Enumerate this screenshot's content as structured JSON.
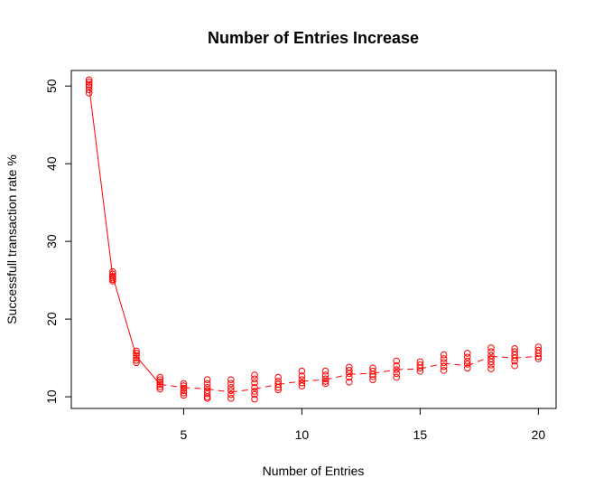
{
  "chart_data": {
    "type": "scatter",
    "title": "Number of Entries Increase",
    "xlabel": "Number of Entries",
    "ylabel": "Successfull transaction rate %",
    "xlim": [
      0.25,
      20.75
    ],
    "ylim": [
      8.5,
      52.0
    ],
    "xticks": [
      5,
      10,
      15,
      20
    ],
    "yticks": [
      10,
      20,
      30,
      40,
      50
    ],
    "grid": false,
    "series_color": "#ff0000",
    "x": [
      1,
      2,
      3,
      4,
      5,
      6,
      7,
      8,
      9,
      10,
      11,
      12,
      13,
      14,
      15,
      16,
      17,
      18,
      19,
      20
    ],
    "points": [
      [
        50.8,
        50.5,
        50.2,
        49.9,
        49.5,
        49.1
      ],
      [
        26.1,
        25.8,
        25.5,
        25.3,
        25.1,
        24.9
      ],
      [
        15.9,
        15.6,
        15.3,
        15.0,
        14.7,
        14.4
      ],
      [
        12.5,
        12.2,
        11.9,
        11.6,
        11.3,
        11.0
      ],
      [
        11.7,
        11.4,
        11.1,
        10.8,
        10.5,
        10.2
      ],
      [
        12.2,
        11.7,
        11.2,
        10.8,
        10.4,
        10.0,
        9.8
      ],
      [
        12.2,
        11.7,
        11.2,
        10.8,
        10.3,
        9.8
      ],
      [
        12.8,
        12.3,
        11.8,
        11.2,
        10.7,
        10.3,
        9.7
      ],
      [
        12.5,
        12.0,
        11.6,
        11.2,
        10.9
      ],
      [
        13.3,
        12.7,
        12.2,
        11.8,
        11.4
      ],
      [
        13.3,
        12.8,
        12.3,
        12.0,
        11.7
      ],
      [
        13.8,
        13.4,
        13.0,
        12.5,
        11.9
      ],
      [
        13.7,
        13.3,
        12.9,
        12.6,
        12.2
      ],
      [
        14.6,
        14.0,
        13.5,
        13.0,
        12.5
      ],
      [
        14.5,
        14.1,
        13.7,
        13.3
      ],
      [
        15.4,
        14.9,
        14.4,
        13.9,
        13.4
      ],
      [
        15.6,
        15.1,
        14.6,
        14.2,
        13.7
      ],
      [
        16.3,
        15.8,
        15.3,
        14.9,
        14.5,
        14.1,
        13.6
      ],
      [
        16.2,
        15.8,
        15.4,
        15.0,
        14.6,
        14.0
      ],
      [
        16.4,
        16.0,
        15.6,
        15.2,
        14.9
      ]
    ],
    "line": [
      50.0,
      25.5,
      15.2,
      11.6,
      11.2,
      11.0,
      10.6,
      11.0,
      11.6,
      12.0,
      12.2,
      12.9,
      13.0,
      13.5,
      13.6,
      14.3,
      14.0,
      15.2,
      15.0,
      15.2
    ]
  }
}
